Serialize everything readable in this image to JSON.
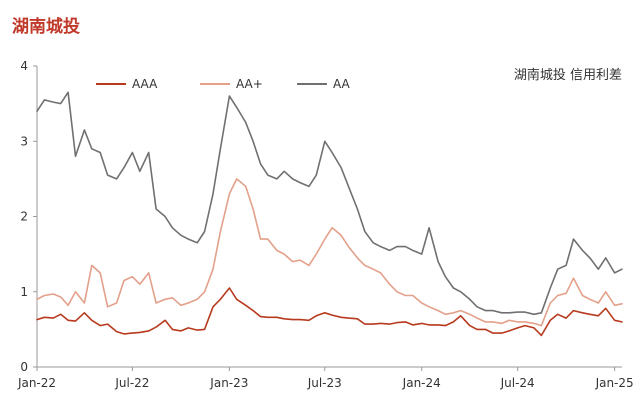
{
  "page": {
    "title": "湖南城投"
  },
  "colors": {
    "AAA": "#B83A1E",
    "AA+": "#E3A08A",
    "AA": "#707070",
    "title": "#C0392B",
    "axis": "#999999"
  },
  "chart_data": {
    "type": "line",
    "annotation": "湖南城投 信用利差",
    "xlabel": "",
    "ylabel": "",
    "ylim": [
      0,
      4
    ],
    "yticks": [
      0,
      1,
      2,
      3,
      4
    ],
    "xlim": [
      "2022-01-01",
      "2025-01-15"
    ],
    "xticks": [
      {
        "label": "Jan-22",
        "date": "2022-01-01"
      },
      {
        "label": "Jul-22",
        "date": "2022-07-01"
      },
      {
        "label": "Jan-23",
        "date": "2023-01-01"
      },
      {
        "label": "Jul-23",
        "date": "2023-07-01"
      },
      {
        "label": "Jan-24",
        "date": "2024-01-01"
      },
      {
        "label": "Jul-24",
        "date": "2024-07-01"
      },
      {
        "label": "Jan-25",
        "date": "2025-01-01"
      }
    ],
    "grid": false,
    "legend_position": "top",
    "series": [
      {
        "name": "AAA",
        "points": [
          [
            "2022-01-01",
            0.63
          ],
          [
            "2022-01-15",
            0.66
          ],
          [
            "2022-02-01",
            0.65
          ],
          [
            "2022-02-15",
            0.7
          ],
          [
            "2022-03-01",
            0.62
          ],
          [
            "2022-03-15",
            0.61
          ],
          [
            "2022-04-01",
            0.72
          ],
          [
            "2022-04-15",
            0.62
          ],
          [
            "2022-05-01",
            0.55
          ],
          [
            "2022-05-15",
            0.57
          ],
          [
            "2022-06-01",
            0.47
          ],
          [
            "2022-06-15",
            0.44
          ],
          [
            "2022-07-01",
            0.45
          ],
          [
            "2022-07-15",
            0.46
          ],
          [
            "2022-08-01",
            0.48
          ],
          [
            "2022-08-15",
            0.53
          ],
          [
            "2022-09-01",
            0.62
          ],
          [
            "2022-09-15",
            0.5
          ],
          [
            "2022-10-01",
            0.48
          ],
          [
            "2022-10-15",
            0.52
          ],
          [
            "2022-11-01",
            0.49
          ],
          [
            "2022-11-15",
            0.5
          ],
          [
            "2022-12-01",
            0.8
          ],
          [
            "2022-12-15",
            0.9
          ],
          [
            "2023-01-01",
            1.05
          ],
          [
            "2023-01-15",
            0.9
          ],
          [
            "2023-02-01",
            0.82
          ],
          [
            "2023-02-15",
            0.75
          ],
          [
            "2023-03-01",
            0.67
          ],
          [
            "2023-03-15",
            0.66
          ],
          [
            "2023-04-01",
            0.66
          ],
          [
            "2023-04-15",
            0.64
          ],
          [
            "2023-05-01",
            0.63
          ],
          [
            "2023-05-15",
            0.63
          ],
          [
            "2023-06-01",
            0.62
          ],
          [
            "2023-06-15",
            0.68
          ],
          [
            "2023-07-01",
            0.72
          ],
          [
            "2023-07-15",
            0.69
          ],
          [
            "2023-08-01",
            0.66
          ],
          [
            "2023-08-15",
            0.65
          ],
          [
            "2023-09-01",
            0.64
          ],
          [
            "2023-09-15",
            0.57
          ],
          [
            "2023-10-01",
            0.57
          ],
          [
            "2023-10-15",
            0.58
          ],
          [
            "2023-11-01",
            0.57
          ],
          [
            "2023-11-15",
            0.59
          ],
          [
            "2023-12-01",
            0.6
          ],
          [
            "2023-12-15",
            0.56
          ],
          [
            "2024-01-01",
            0.58
          ],
          [
            "2024-01-15",
            0.56
          ],
          [
            "2024-02-01",
            0.56
          ],
          [
            "2024-02-15",
            0.55
          ],
          [
            "2024-03-01",
            0.6
          ],
          [
            "2024-03-15",
            0.68
          ],
          [
            "2024-04-01",
            0.55
          ],
          [
            "2024-04-15",
            0.5
          ],
          [
            "2024-05-01",
            0.5
          ],
          [
            "2024-05-15",
            0.45
          ],
          [
            "2024-06-01",
            0.45
          ],
          [
            "2024-06-15",
            0.48
          ],
          [
            "2024-07-01",
            0.52
          ],
          [
            "2024-07-15",
            0.55
          ],
          [
            "2024-08-01",
            0.52
          ],
          [
            "2024-08-15",
            0.42
          ],
          [
            "2024-09-01",
            0.62
          ],
          [
            "2024-09-15",
            0.7
          ],
          [
            "2024-10-01",
            0.65
          ],
          [
            "2024-10-15",
            0.75
          ],
          [
            "2024-11-01",
            0.72
          ],
          [
            "2024-11-15",
            0.7
          ],
          [
            "2024-12-01",
            0.68
          ],
          [
            "2024-12-15",
            0.78
          ],
          [
            "2025-01-01",
            0.62
          ],
          [
            "2025-01-15",
            0.6
          ]
        ]
      },
      {
        "name": "AA+",
        "points": [
          [
            "2022-01-01",
            0.9
          ],
          [
            "2022-01-15",
            0.95
          ],
          [
            "2022-02-01",
            0.97
          ],
          [
            "2022-02-15",
            0.93
          ],
          [
            "2022-03-01",
            0.82
          ],
          [
            "2022-03-15",
            1.0
          ],
          [
            "2022-04-01",
            0.85
          ],
          [
            "2022-04-15",
            1.35
          ],
          [
            "2022-05-01",
            1.25
          ],
          [
            "2022-05-15",
            0.8
          ],
          [
            "2022-06-01",
            0.85
          ],
          [
            "2022-06-15",
            1.15
          ],
          [
            "2022-07-01",
            1.2
          ],
          [
            "2022-07-15",
            1.1
          ],
          [
            "2022-08-01",
            1.25
          ],
          [
            "2022-08-15",
            0.85
          ],
          [
            "2022-09-01",
            0.9
          ],
          [
            "2022-09-15",
            0.92
          ],
          [
            "2022-10-01",
            0.82
          ],
          [
            "2022-10-15",
            0.85
          ],
          [
            "2022-11-01",
            0.9
          ],
          [
            "2022-11-15",
            1.0
          ],
          [
            "2022-12-01",
            1.3
          ],
          [
            "2022-12-15",
            1.8
          ],
          [
            "2023-01-01",
            2.3
          ],
          [
            "2023-01-15",
            2.5
          ],
          [
            "2023-02-01",
            2.4
          ],
          [
            "2023-02-15",
            2.1
          ],
          [
            "2023-03-01",
            1.7
          ],
          [
            "2023-03-15",
            1.7
          ],
          [
            "2023-04-01",
            1.55
          ],
          [
            "2023-04-15",
            1.5
          ],
          [
            "2023-05-01",
            1.4
          ],
          [
            "2023-05-15",
            1.42
          ],
          [
            "2023-06-01",
            1.35
          ],
          [
            "2023-06-15",
            1.5
          ],
          [
            "2023-07-01",
            1.7
          ],
          [
            "2023-07-15",
            1.85
          ],
          [
            "2023-08-01",
            1.75
          ],
          [
            "2023-08-15",
            1.6
          ],
          [
            "2023-09-01",
            1.45
          ],
          [
            "2023-09-15",
            1.35
          ],
          [
            "2023-10-01",
            1.3
          ],
          [
            "2023-10-15",
            1.25
          ],
          [
            "2023-11-01",
            1.1
          ],
          [
            "2023-11-15",
            1.0
          ],
          [
            "2023-12-01",
            0.95
          ],
          [
            "2023-12-15",
            0.95
          ],
          [
            "2024-01-01",
            0.85
          ],
          [
            "2024-01-15",
            0.8
          ],
          [
            "2024-02-01",
            0.75
          ],
          [
            "2024-02-15",
            0.7
          ],
          [
            "2024-03-01",
            0.72
          ],
          [
            "2024-03-15",
            0.75
          ],
          [
            "2024-04-01",
            0.7
          ],
          [
            "2024-04-15",
            0.65
          ],
          [
            "2024-05-01",
            0.6
          ],
          [
            "2024-05-15",
            0.6
          ],
          [
            "2024-06-01",
            0.58
          ],
          [
            "2024-06-15",
            0.62
          ],
          [
            "2024-07-01",
            0.6
          ],
          [
            "2024-07-15",
            0.6
          ],
          [
            "2024-08-01",
            0.58
          ],
          [
            "2024-08-15",
            0.55
          ],
          [
            "2024-09-01",
            0.85
          ],
          [
            "2024-09-15",
            0.95
          ],
          [
            "2024-10-01",
            0.98
          ],
          [
            "2024-10-15",
            1.18
          ],
          [
            "2024-11-01",
            0.95
          ],
          [
            "2024-11-15",
            0.9
          ],
          [
            "2024-12-01",
            0.85
          ],
          [
            "2024-12-15",
            1.0
          ],
          [
            "2025-01-01",
            0.82
          ],
          [
            "2025-01-15",
            0.84
          ]
        ]
      },
      {
        "name": "AA",
        "points": [
          [
            "2022-01-01",
            3.4
          ],
          [
            "2022-01-15",
            3.55
          ],
          [
            "2022-02-01",
            3.52
          ],
          [
            "2022-02-15",
            3.5
          ],
          [
            "2022-03-01",
            3.65
          ],
          [
            "2022-03-15",
            2.8
          ],
          [
            "2022-04-01",
            3.15
          ],
          [
            "2022-04-15",
            2.9
          ],
          [
            "2022-05-01",
            2.85
          ],
          [
            "2022-05-15",
            2.55
          ],
          [
            "2022-06-01",
            2.5
          ],
          [
            "2022-06-15",
            2.65
          ],
          [
            "2022-07-01",
            2.85
          ],
          [
            "2022-07-15",
            2.6
          ],
          [
            "2022-08-01",
            2.85
          ],
          [
            "2022-08-15",
            2.1
          ],
          [
            "2022-09-01",
            2.0
          ],
          [
            "2022-09-15",
            1.85
          ],
          [
            "2022-10-01",
            1.75
          ],
          [
            "2022-10-15",
            1.7
          ],
          [
            "2022-11-01",
            1.65
          ],
          [
            "2022-11-15",
            1.8
          ],
          [
            "2022-12-01",
            2.3
          ],
          [
            "2022-12-15",
            2.9
          ],
          [
            "2023-01-01",
            3.6
          ],
          [
            "2023-01-15",
            3.45
          ],
          [
            "2023-02-01",
            3.25
          ],
          [
            "2023-02-15",
            3.0
          ],
          [
            "2023-03-01",
            2.7
          ],
          [
            "2023-03-15",
            2.55
          ],
          [
            "2023-04-01",
            2.5
          ],
          [
            "2023-04-15",
            2.6
          ],
          [
            "2023-05-01",
            2.5
          ],
          [
            "2023-05-15",
            2.45
          ],
          [
            "2023-06-01",
            2.4
          ],
          [
            "2023-06-15",
            2.55
          ],
          [
            "2023-07-01",
            3.0
          ],
          [
            "2023-07-15",
            2.85
          ],
          [
            "2023-08-01",
            2.65
          ],
          [
            "2023-08-15",
            2.4
          ],
          [
            "2023-09-01",
            2.1
          ],
          [
            "2023-09-15",
            1.8
          ],
          [
            "2023-10-01",
            1.65
          ],
          [
            "2023-10-15",
            1.6
          ],
          [
            "2023-11-01",
            1.55
          ],
          [
            "2023-11-15",
            1.6
          ],
          [
            "2023-12-01",
            1.6
          ],
          [
            "2023-12-15",
            1.55
          ],
          [
            "2024-01-01",
            1.5
          ],
          [
            "2024-01-15",
            1.85
          ],
          [
            "2024-02-01",
            1.4
          ],
          [
            "2024-02-15",
            1.2
          ],
          [
            "2024-03-01",
            1.05
          ],
          [
            "2024-03-15",
            1.0
          ],
          [
            "2024-04-01",
            0.9
          ],
          [
            "2024-04-15",
            0.8
          ],
          [
            "2024-05-01",
            0.75
          ],
          [
            "2024-05-15",
            0.75
          ],
          [
            "2024-06-01",
            0.72
          ],
          [
            "2024-06-15",
            0.72
          ],
          [
            "2024-07-01",
            0.73
          ],
          [
            "2024-07-15",
            0.73
          ],
          [
            "2024-08-01",
            0.7
          ],
          [
            "2024-08-15",
            0.72
          ],
          [
            "2024-09-01",
            1.05
          ],
          [
            "2024-09-15",
            1.3
          ],
          [
            "2024-10-01",
            1.35
          ],
          [
            "2024-10-15",
            1.7
          ],
          [
            "2024-11-01",
            1.55
          ],
          [
            "2024-11-15",
            1.45
          ],
          [
            "2024-12-01",
            1.3
          ],
          [
            "2024-12-15",
            1.45
          ],
          [
            "2025-01-01",
            1.25
          ],
          [
            "2025-01-15",
            1.3
          ]
        ]
      }
    ]
  }
}
